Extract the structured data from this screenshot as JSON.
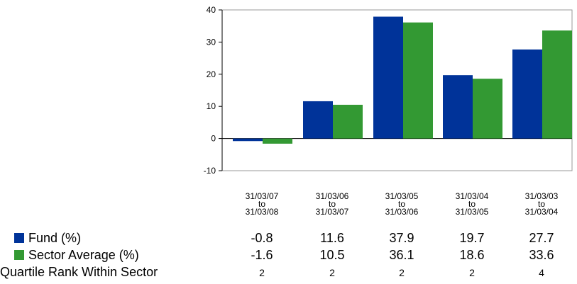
{
  "chart_data": {
    "type": "bar",
    "categories": [
      [
        "31/03/07",
        "to",
        "31/03/08"
      ],
      [
        "31/03/06",
        "to",
        "31/03/07"
      ],
      [
        "31/03/05",
        "to",
        "31/03/06"
      ],
      [
        "31/03/04",
        "to",
        "31/03/05"
      ],
      [
        "31/03/03",
        "to",
        "31/03/04"
      ]
    ],
    "series": [
      {
        "name": "Fund (%)",
        "color": "#003399",
        "values": [
          -0.8,
          11.6,
          37.9,
          19.7,
          27.7
        ]
      },
      {
        "name": "Sector Average (%)",
        "color": "#339933",
        "values": [
          -1.6,
          10.5,
          36.1,
          18.6,
          33.6
        ]
      }
    ],
    "yticks": [
      40,
      30,
      20,
      10,
      0,
      -10
    ],
    "ylim": [
      -10,
      40
    ],
    "grid": false,
    "legend": "bottom-left",
    "title": "",
    "xlabel": "",
    "ylabel": ""
  },
  "table": {
    "fund_label": "Fund (%)",
    "fund_values": [
      "-0.8",
      "11.6",
      "37.9",
      "19.7",
      "27.7"
    ],
    "sector_label": "Sector Average (%)",
    "sector_values": [
      "-1.6",
      "10.5",
      "36.1",
      "18.6",
      "33.6"
    ],
    "quartile_label": "Quartile Rank Within Sector",
    "quartile_values": [
      "2",
      "2",
      "2",
      "2",
      "4"
    ]
  }
}
